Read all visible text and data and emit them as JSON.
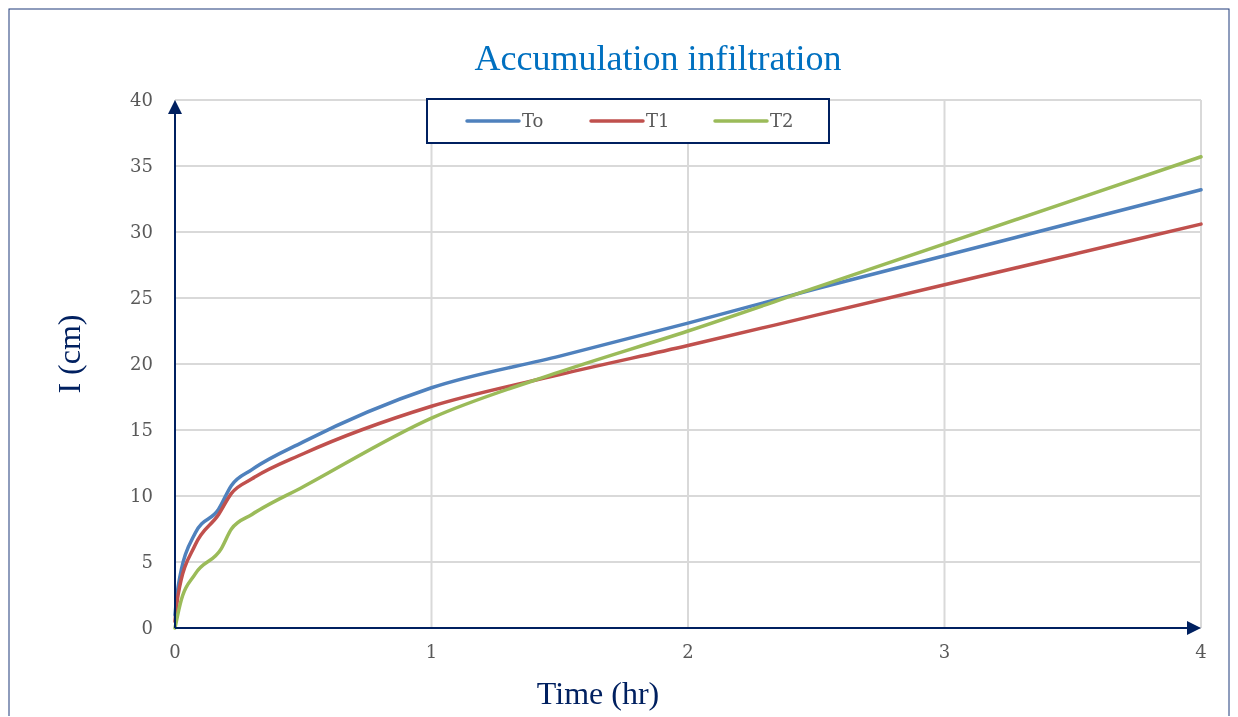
{
  "chart_data": {
    "type": "line",
    "title": "Accumulation infiltration",
    "xlabel": "Time (hr)",
    "ylabel": "I (cm)",
    "xlim": [
      0,
      4
    ],
    "xticks": [
      0,
      1,
      2,
      3,
      4
    ],
    "ylim": [
      0,
      40
    ],
    "yticks": [
      0,
      5,
      10,
      15,
      20,
      25,
      30,
      35,
      40
    ],
    "grid": true,
    "legend": "top",
    "marker": "none",
    "line_style": "solid",
    "series": [
      {
        "name": "To",
        "color": "#4f81bd",
        "x": [
          0,
          0.012,
          0.079,
          0.17,
          0.22,
          0.3,
          0.5,
          1,
          1.5,
          2,
          2.5,
          3,
          3.5,
          4
        ],
        "values": [
          1,
          3.1,
          7.2,
          9,
          10.8,
          12,
          14.1,
          18.2,
          20.6,
          23.1,
          25.7,
          28.2,
          30.7,
          33.2
        ]
      },
      {
        "name": "T1",
        "color": "#c0504d",
        "x": [
          0,
          0.012,
          0.079,
          0.17,
          0.22,
          0.3,
          0.5,
          1,
          1.5,
          2,
          2.5,
          3,
          3.5,
          4
        ],
        "values": [
          0.5,
          2.5,
          6.3,
          8.6,
          10.2,
          11.3,
          13.2,
          16.8,
          19.2,
          21.4,
          23.7,
          26,
          28.3,
          30.6
        ]
      },
      {
        "name": "T2",
        "color": "#9bbb59",
        "x": [
          0,
          0.02,
          0.079,
          0.18,
          0.22,
          0.3,
          0.5,
          1,
          1.5,
          2,
          2.5,
          3,
          3.5,
          4
        ],
        "values": [
          0,
          1.8,
          4.1,
          6,
          7.5,
          8.6,
          10.7,
          15.9,
          19.4,
          22.5,
          25.8,
          29.1,
          32.4,
          35.7
        ]
      }
    ]
  }
}
